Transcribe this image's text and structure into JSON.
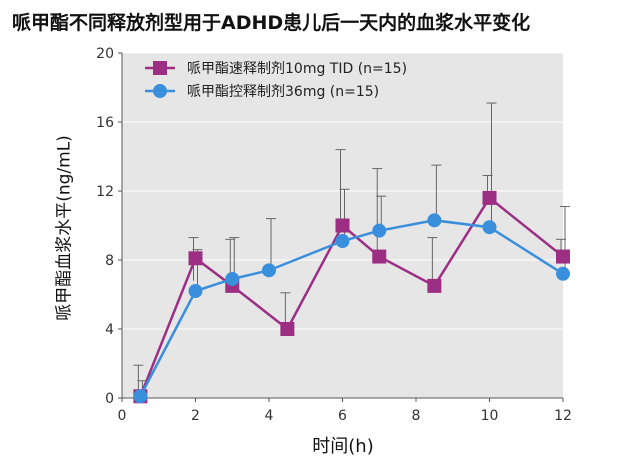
{
  "chart_data": {
    "type": "line",
    "title": "哌甲酯不同释放剂型用于ADHD患儿后一天内的血浆水平变化",
    "xlabel": "时间(h)",
    "ylabel": "哌甲酯血浆水平(ng/mL)",
    "xlim": [
      0,
      12
    ],
    "ylim": [
      0,
      20
    ],
    "xticks": [
      0,
      2,
      4,
      6,
      8,
      10,
      12
    ],
    "yticks": [
      0,
      4,
      8,
      12,
      16,
      20
    ],
    "grid": true,
    "legend_position": "top-left",
    "series": [
      {
        "name": "哌甲酯速释制剂10mg TID (n=15)",
        "color": "#9c2f84",
        "marker": "square",
        "x": [
          0.5,
          2,
          3,
          4.5,
          6,
          7,
          8.5,
          10,
          12
        ],
        "y": [
          0.1,
          8.1,
          6.5,
          4.0,
          10.0,
          8.2,
          6.5,
          11.6,
          8.2
        ],
        "error_high": [
          1.9,
          9.3,
          9.2,
          6.1,
          14.4,
          13.3,
          9.3,
          12.9,
          9.2
        ],
        "error_low": [
          0.1,
          6.8,
          6.5,
          4.0,
          9.6,
          8.2,
          6.5,
          11.6,
          8.2
        ]
      },
      {
        "name": "哌甲酯控释制剂36mg (n=15)",
        "color": "#3a8fdc",
        "marker": "circle",
        "x": [
          0.5,
          2,
          3,
          4,
          6,
          7,
          8.5,
          10,
          12
        ],
        "y": [
          0.1,
          6.2,
          6.9,
          7.4,
          9.1,
          9.7,
          10.3,
          9.9,
          7.2
        ],
        "error_high": [
          1.0,
          8.6,
          9.3,
          10.4,
          12.1,
          11.7,
          13.5,
          17.1,
          11.1
        ],
        "error_low": [
          0.1,
          6.2,
          6.9,
          7.4,
          9.1,
          9.7,
          10.3,
          9.9,
          7.2
        ]
      }
    ]
  }
}
